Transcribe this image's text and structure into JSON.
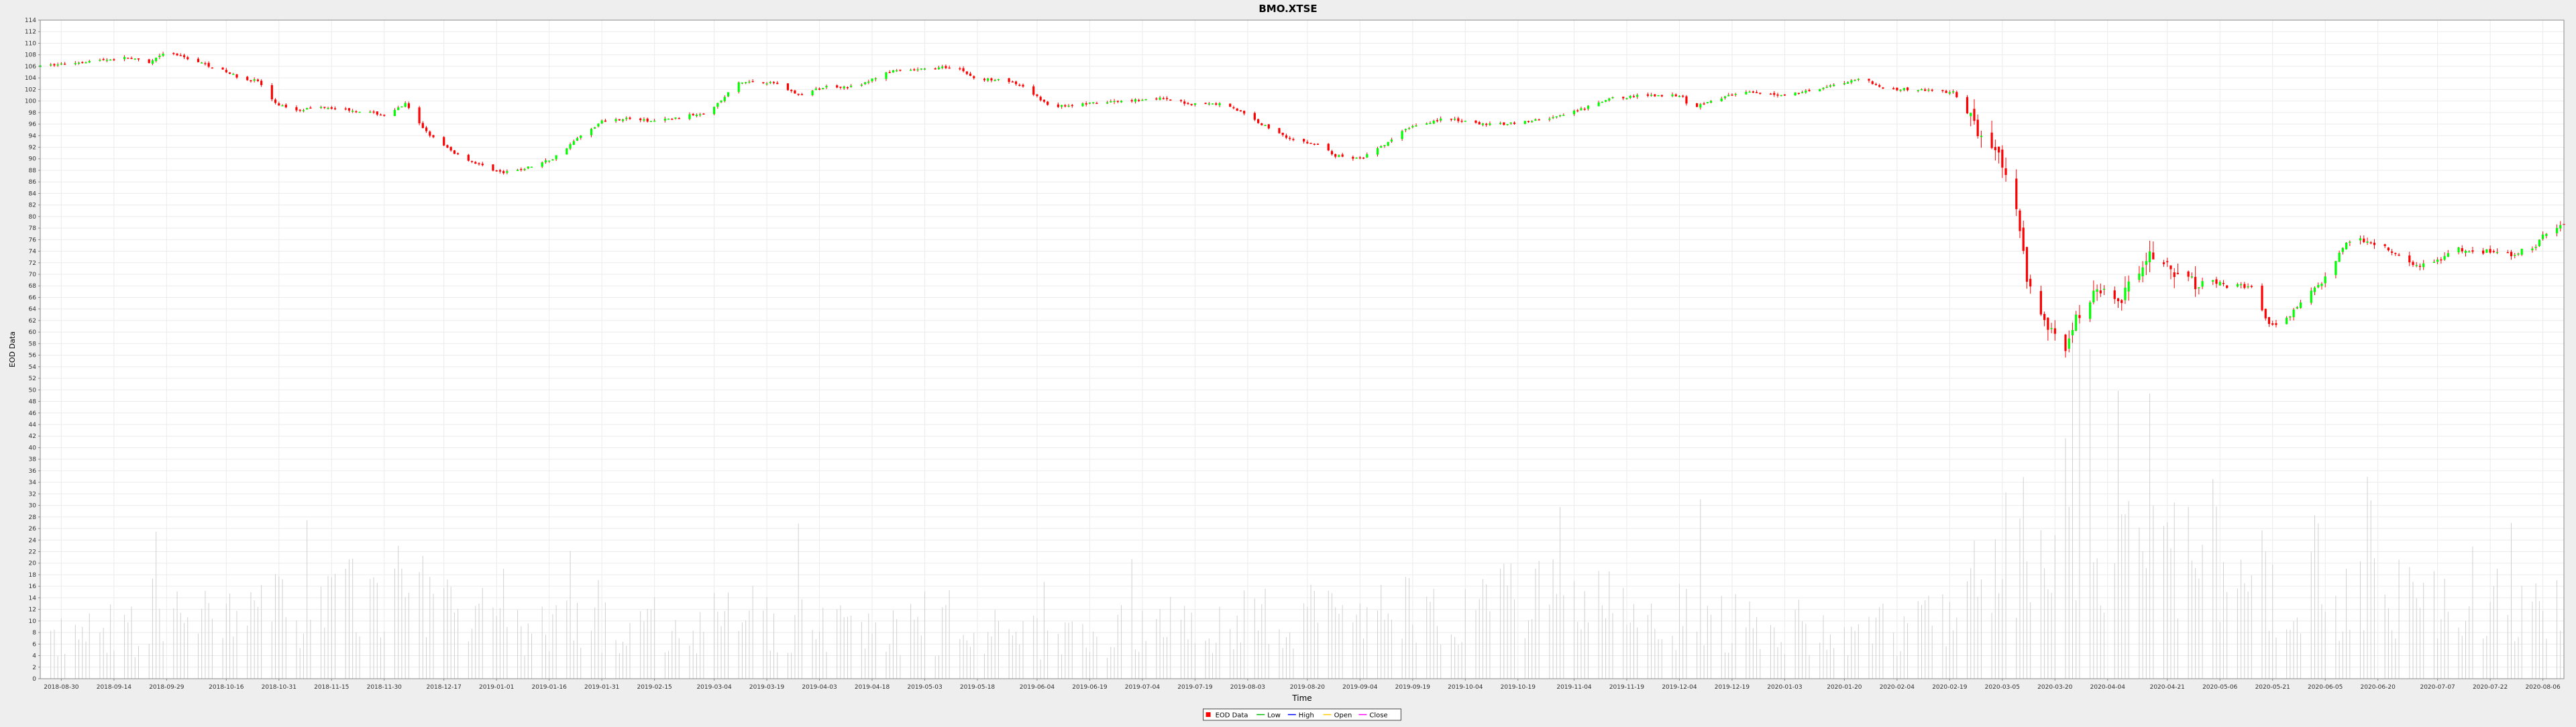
{
  "chart_data": {
    "type": "candlestick",
    "title": "BMO.XTSE",
    "xlabel": "Time",
    "ylabel": "EOD Data",
    "ylim": [
      0,
      114
    ],
    "y_ticks": [
      0,
      2,
      4,
      6,
      8,
      10,
      12,
      14,
      16,
      18,
      20,
      22,
      24,
      26,
      28,
      30,
      32,
      34,
      36,
      38,
      40,
      42,
      44,
      46,
      48,
      50,
      52,
      54,
      56,
      58,
      60,
      62,
      64,
      66,
      68,
      70,
      72,
      74,
      76,
      78,
      80,
      82,
      84,
      86,
      88,
      90,
      92,
      94,
      96,
      98,
      100,
      102,
      104,
      106,
      108,
      110,
      112,
      114
    ],
    "x_start": "2018-08-24",
    "x_end": "2020-08-12",
    "x_ticks": [
      "2018-08-30",
      "2018-09-14",
      "2018-09-29",
      "2018-10-16",
      "2018-10-31",
      "2018-11-15",
      "2018-11-30",
      "2018-12-17",
      "2019-01-01",
      "2019-01-16",
      "2019-01-31",
      "2019-02-15",
      "2019-03-04",
      "2019-03-19",
      "2019-04-03",
      "2019-04-18",
      "2019-05-03",
      "2019-05-18",
      "2019-06-04",
      "2019-06-19",
      "2019-07-04",
      "2019-07-19",
      "2019-08-03",
      "2019-08-20",
      "2019-09-04",
      "2019-09-19",
      "2019-10-04",
      "2019-10-19",
      "2019-11-04",
      "2019-11-19",
      "2019-12-04",
      "2019-12-19",
      "2020-01-03",
      "2020-01-20",
      "2020-02-04",
      "2020-02-19",
      "2020-03-05",
      "2020-03-20",
      "2020-04-04",
      "2020-04-21",
      "2020-05-06",
      "2020-05-21",
      "2020-06-05",
      "2020-06-20",
      "2020-07-07",
      "2020-07-22",
      "2020-08-06"
    ],
    "grid": true,
    "legend_position": "bottom-center",
    "legend": [
      {
        "label": "EOD Data",
        "color": "#ff0000"
      },
      {
        "label": "Low",
        "color": "#00bb00"
      },
      {
        "label": "High",
        "color": "#0000ff"
      },
      {
        "label": "Open",
        "color": "#ffcc00"
      },
      {
        "label": "Close",
        "color": "#ff00ff"
      }
    ],
    "colors": {
      "up": "#00ff00",
      "down": "#ff0000",
      "wick": "#ff0000",
      "volume": "#d0d0d0",
      "grid": "#ebebeb",
      "plot_bg": "#ffffff",
      "page_bg": "#eeeeee"
    },
    "price_path": [
      [
        "2018-08-24",
        106
      ],
      [
        "2018-09-05",
        106.8
      ],
      [
        "2018-09-18",
        107.5
      ],
      [
        "2018-09-24",
        106.5
      ],
      [
        "2018-09-29",
        108.5
      ],
      [
        "2018-10-06",
        107.2
      ],
      [
        "2018-10-14",
        105.5
      ],
      [
        "2018-10-20",
        104
      ],
      [
        "2018-10-25",
        103.5
      ],
      [
        "2018-10-30",
        99.5
      ],
      [
        "2018-11-05",
        98.5
      ],
      [
        "2018-11-13",
        99
      ],
      [
        "2018-11-20",
        98.5
      ],
      [
        "2018-11-26",
        98
      ],
      [
        "2018-12-01",
        97.5
      ],
      [
        "2018-12-06",
        99.5
      ],
      [
        "2018-12-10",
        96
      ],
      [
        "2018-12-15",
        93
      ],
      [
        "2018-12-20",
        91
      ],
      [
        "2018-12-27",
        89
      ],
      [
        "2019-01-03",
        87.5
      ],
      [
        "2019-01-10",
        88.5
      ],
      [
        "2019-01-17",
        90
      ],
      [
        "2019-01-24",
        93.5
      ],
      [
        "2019-01-31",
        96.5
      ],
      [
        "2019-02-07",
        97
      ],
      [
        "2019-02-14",
        96.5
      ],
      [
        "2019-02-21",
        97
      ],
      [
        "2019-03-01",
        98
      ],
      [
        "2019-03-06",
        100
      ],
      [
        "2019-03-10",
        103
      ],
      [
        "2019-03-16",
        103.5
      ],
      [
        "2019-03-22",
        103
      ],
      [
        "2019-03-28",
        101
      ],
      [
        "2019-04-05",
        102.5
      ],
      [
        "2019-04-14",
        102.5
      ],
      [
        "2019-04-22",
        105
      ],
      [
        "2019-05-03",
        105.5
      ],
      [
        "2019-05-12",
        106
      ],
      [
        "2019-05-18",
        103.5
      ],
      [
        "2019-05-25",
        104
      ],
      [
        "2019-06-01",
        102
      ],
      [
        "2019-06-08",
        99
      ],
      [
        "2019-06-18",
        99.5
      ],
      [
        "2019-06-28",
        100
      ],
      [
        "2019-07-08",
        100.5
      ],
      [
        "2019-07-18",
        99.5
      ],
      [
        "2019-07-28",
        99.5
      ],
      [
        "2019-08-04",
        97
      ],
      [
        "2019-08-10",
        95
      ],
      [
        "2019-08-17",
        93
      ],
      [
        "2019-08-23",
        92.5
      ],
      [
        "2019-08-28",
        90.5
      ],
      [
        "2019-09-04",
        90
      ],
      [
        "2019-09-10",
        92
      ],
      [
        "2019-09-18",
        95.5
      ],
      [
        "2019-09-28",
        97
      ],
      [
        "2019-10-08",
        96
      ],
      [
        "2019-10-14",
        96
      ],
      [
        "2019-10-22",
        96.5
      ],
      [
        "2019-11-01",
        97.5
      ],
      [
        "2019-11-15",
        100.5
      ],
      [
        "2019-11-25",
        101
      ],
      [
        "2019-12-05",
        101
      ],
      [
        "2019-12-07",
        98.5
      ],
      [
        "2019-12-12",
        100
      ],
      [
        "2019-12-22",
        101.5
      ],
      [
        "2020-01-03",
        101
      ],
      [
        "2020-01-15",
        102.5
      ],
      [
        "2020-01-25",
        104
      ],
      [
        "2020-02-01",
        102
      ],
      [
        "2020-02-10",
        102
      ],
      [
        "2020-02-20",
        101.5
      ],
      [
        "2020-02-24",
        98
      ],
      [
        "2020-02-28",
        94
      ],
      [
        "2020-03-04",
        90
      ],
      [
        "2020-03-09",
        80
      ],
      [
        "2020-03-12",
        70
      ],
      [
        "2020-03-17",
        62
      ],
      [
        "2020-03-23",
        58
      ],
      [
        "2020-03-27",
        63
      ],
      [
        "2020-04-01",
        68
      ],
      [
        "2020-04-08",
        66
      ],
      [
        "2020-04-15",
        73
      ],
      [
        "2020-04-20",
        72
      ],
      [
        "2020-04-25",
        68
      ],
      [
        "2020-05-01",
        69
      ],
      [
        "2020-05-08",
        68
      ],
      [
        "2020-05-15",
        68
      ],
      [
        "2020-05-20",
        61
      ],
      [
        "2020-05-26",
        63
      ],
      [
        "2020-06-01",
        67
      ],
      [
        "2020-06-06",
        70
      ],
      [
        "2020-06-10",
        75
      ],
      [
        "2020-06-16",
        76
      ],
      [
        "2020-06-22",
        75
      ],
      [
        "2020-06-28",
        72
      ],
      [
        "2020-07-05",
        71.5
      ],
      [
        "2020-07-12",
        74.5
      ],
      [
        "2020-07-20",
        74
      ],
      [
        "2020-07-28",
        73.5
      ],
      [
        "2020-08-03",
        74.5
      ],
      [
        "2020-08-08",
        78
      ],
      [
        "2020-08-12",
        78.5
      ]
    ],
    "volume_path": [
      [
        "2018-08-24",
        8
      ],
      [
        "2018-10-15",
        13
      ],
      [
        "2018-12-17",
        19
      ],
      [
        "2019-01-01",
        10
      ],
      [
        "2019-03-15",
        12
      ],
      [
        "2019-06-01",
        9
      ],
      [
        "2019-08-20",
        13
      ],
      [
        "2019-10-19",
        17
      ],
      [
        "2020-01-15",
        10
      ],
      [
        "2020-02-19",
        12
      ],
      [
        "2020-03-05",
        26
      ],
      [
        "2020-03-20",
        34
      ],
      [
        "2020-04-20",
        28
      ],
      [
        "2020-06-05",
        16
      ],
      [
        "2020-07-22",
        17
      ],
      [
        "2020-08-12",
        20
      ]
    ]
  }
}
